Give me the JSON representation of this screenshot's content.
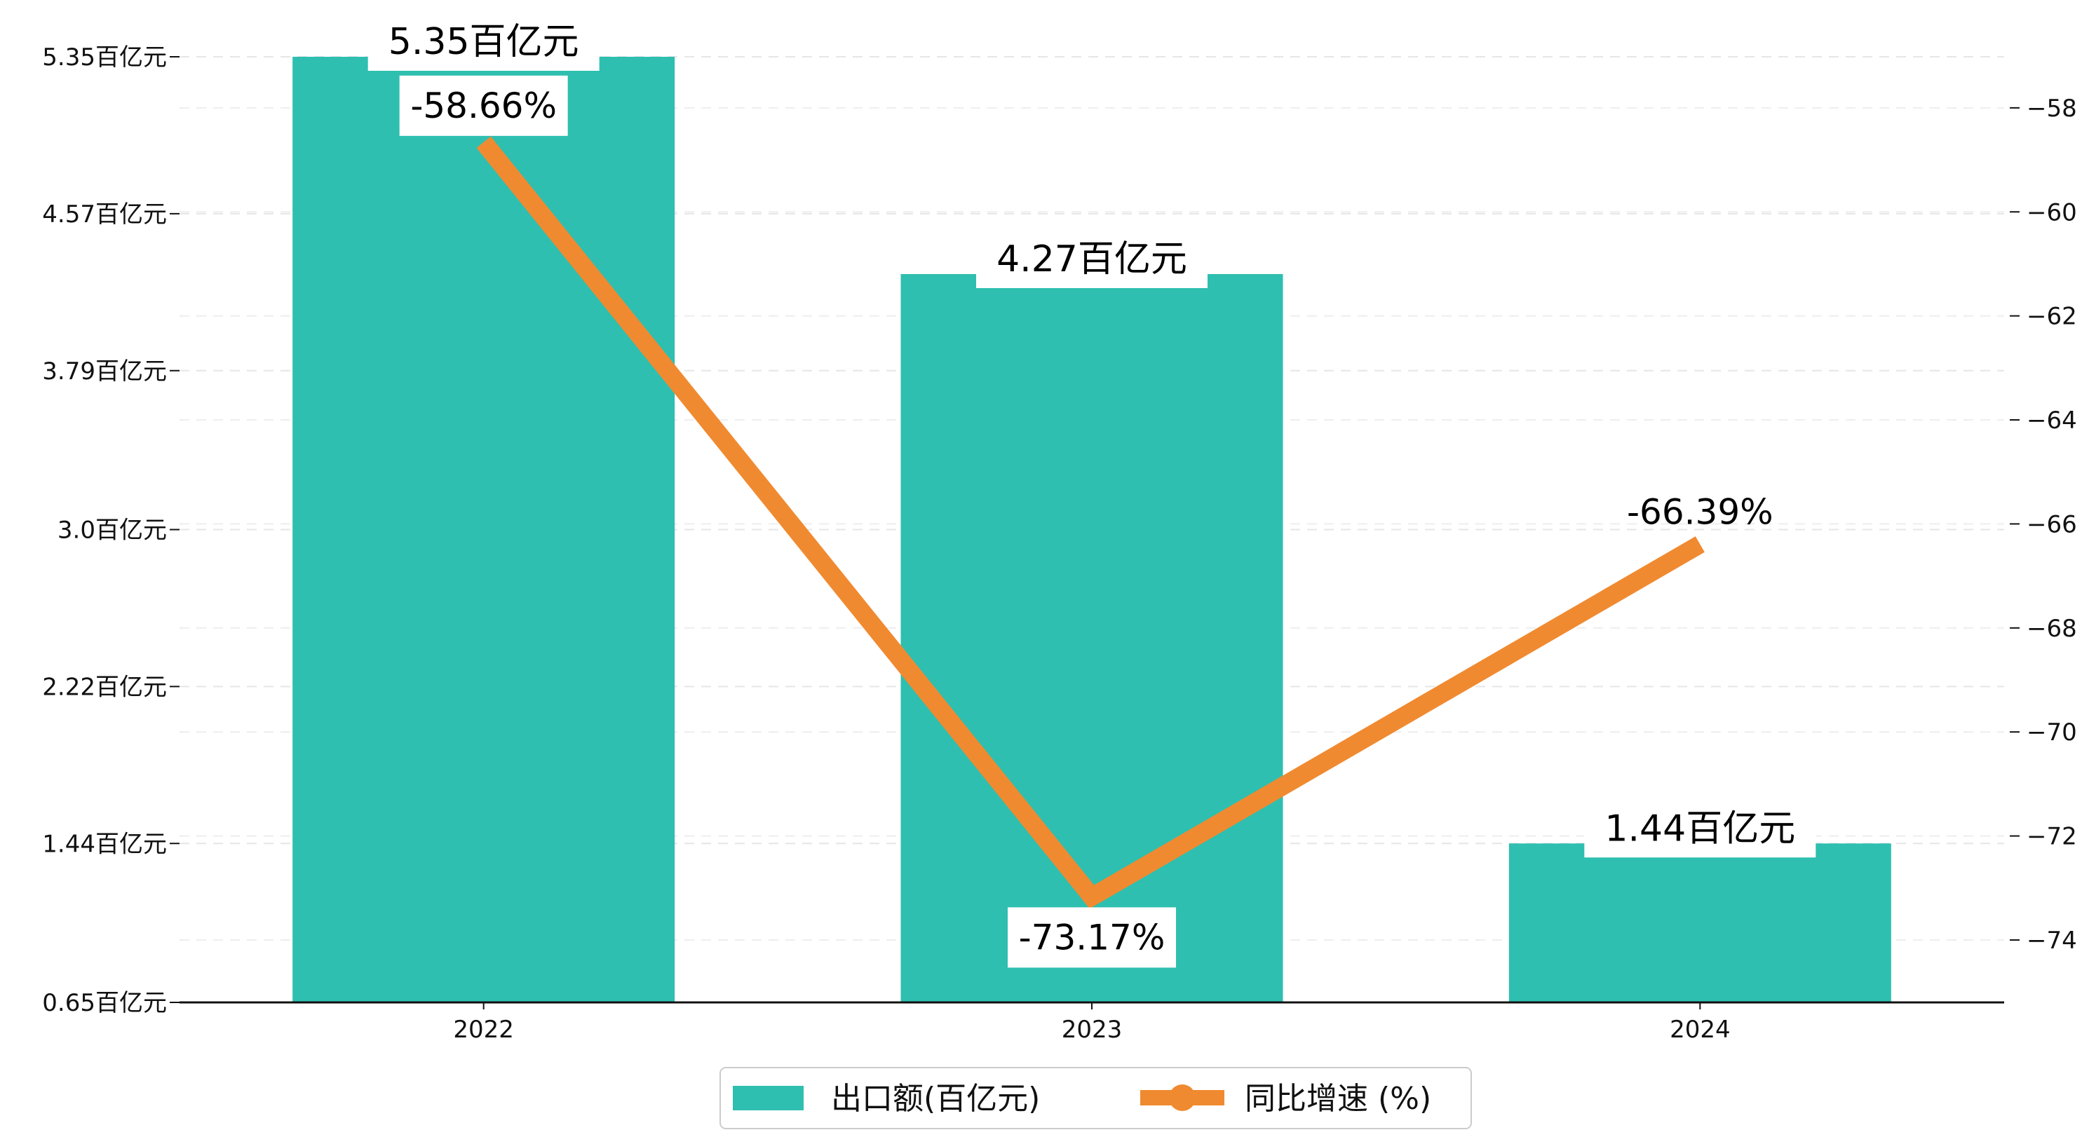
{
  "chart_data": {
    "type": "bar",
    "categories": [
      "2022",
      "2023",
      "2024"
    ],
    "series": [
      {
        "name": "出口额(百亿元)",
        "type": "bar",
        "axis": "left",
        "values": [
          5.35,
          4.27,
          1.44
        ],
        "labels": [
          "5.35百亿元",
          "4.27百亿元",
          "1.44百亿元"
        ],
        "color": "#2ebfb0"
      },
      {
        "name": "同比增速 (%)",
        "type": "line",
        "axis": "right",
        "values": [
          -58.66,
          -73.17,
          -66.39
        ],
        "labels": [
          "-58.66%",
          "-73.17%",
          "-66.39%"
        ],
        "color": "#f08a30"
      }
    ],
    "y_left": {
      "range": [
        0.65,
        5.35
      ],
      "ticks": [
        0.65,
        1.44,
        2.22,
        3.0,
        3.79,
        4.57,
        5.35
      ],
      "tick_labels": [
        "0.65百亿元",
        "1.44百亿元",
        "2.22百亿元",
        "3.0百亿元",
        "3.79百亿元",
        "4.57百亿元",
        "5.35百亿元"
      ]
    },
    "y_right": {
      "range": [
        -75.2,
        -56.6
      ],
      "ticks": [
        -74,
        -72,
        -70,
        -68,
        -66,
        -64,
        -62,
        -60,
        -58
      ],
      "tick_labels": [
        "−74",
        "−72",
        "−70",
        "−68",
        "−66",
        "−64",
        "−62",
        "−60",
        "−58"
      ]
    },
    "grid": "horizontal dashed",
    "legend": "bottom-center"
  }
}
